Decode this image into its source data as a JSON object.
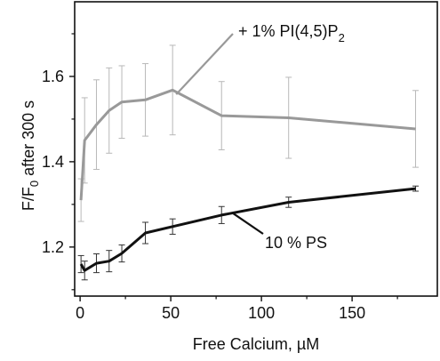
{
  "chart_data": {
    "type": "line",
    "title": "",
    "xlabel": "Free Calcium, µM",
    "ylabel": {
      "main": "F/F",
      "sub": "0",
      "rest": " after 300 s"
    },
    "xlim": [
      -3,
      197
    ],
    "ylim": [
      1.085,
      1.775
    ],
    "xticks": [
      0,
      50,
      100,
      150
    ],
    "yticks": [
      1.2,
      1.4,
      1.6
    ],
    "ytick_labels": [
      "1.2",
      "1.4",
      "1.6"
    ],
    "grid": false,
    "series": [
      {
        "name": "+ 1% PI(4,5)P2",
        "label_main": "+ 1% PI(4,5)P",
        "label_sub": "2",
        "color": "#999999",
        "x": [
          0.5,
          2.5,
          9,
          16,
          23,
          36,
          51,
          78,
          115,
          185
        ],
        "y": [
          1.31,
          1.45,
          1.487,
          1.52,
          1.54,
          1.545,
          1.568,
          1.508,
          1.503,
          1.477
        ],
        "err": [
          0.05,
          0.1,
          0.105,
          0.1,
          0.085,
          0.085,
          0.105,
          0.08,
          0.095,
          0.09
        ]
      },
      {
        "name": "10 % PS",
        "label_main": "10 % PS",
        "label_sub": "",
        "color": "#111111",
        "x": [
          0.5,
          2.5,
          9,
          16,
          23,
          36,
          51,
          78,
          115,
          185
        ],
        "y": [
          1.16,
          1.145,
          1.162,
          1.167,
          1.185,
          1.233,
          1.248,
          1.275,
          1.305,
          1.337
        ],
        "err": [
          0.02,
          0.022,
          0.022,
          0.025,
          0.02,
          0.025,
          0.018,
          0.02,
          0.012,
          0.006
        ]
      }
    ]
  }
}
